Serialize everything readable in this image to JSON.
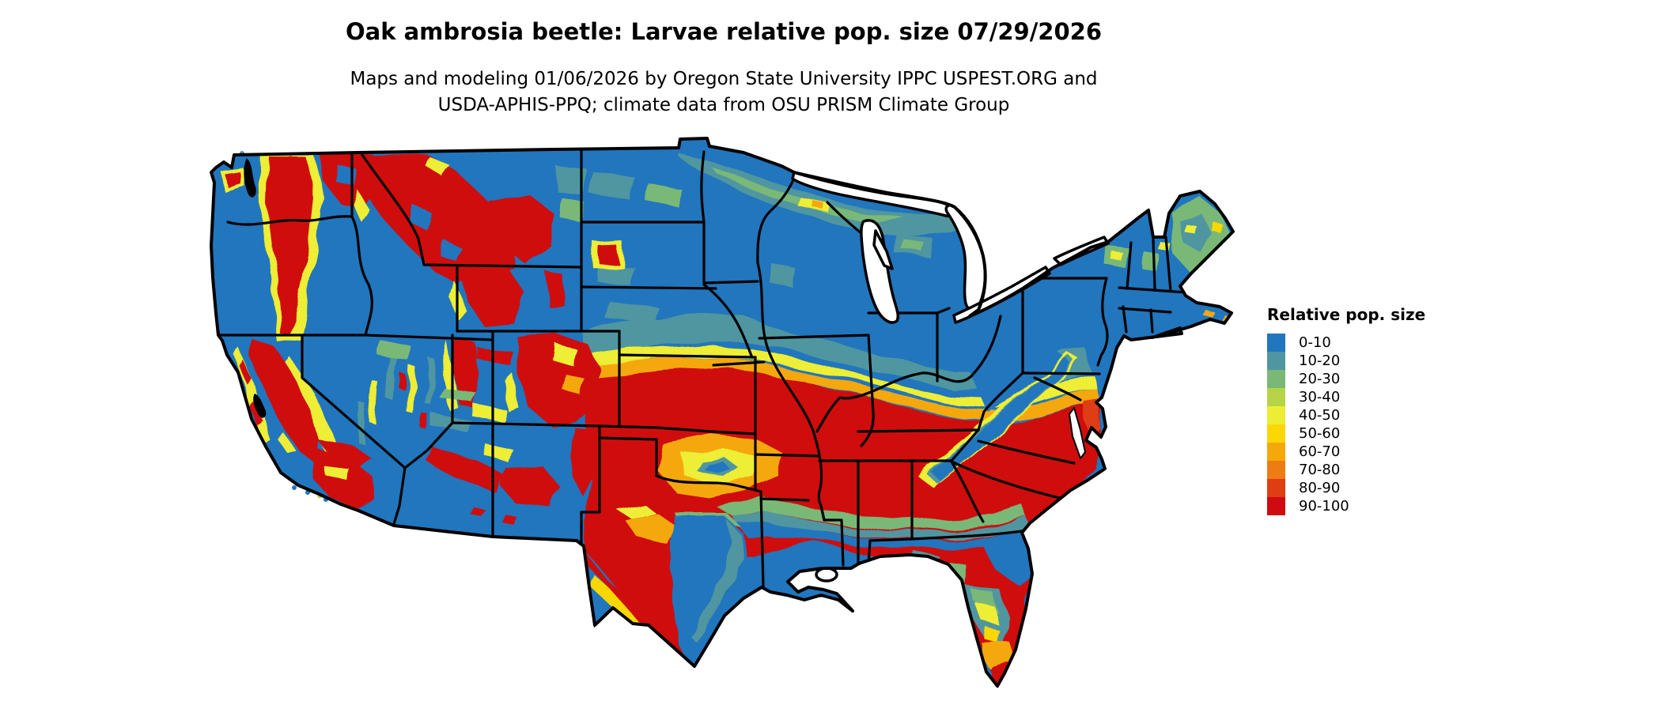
{
  "title": "Oak ambrosia beetle: Larvae relative pop. size 07/29/2026",
  "subtitle": {
    "line1": "Maps and modeling 01/06/2026 by Oregon State University IPPC USPEST.ORG and",
    "line2": "USDA-APHIS-PPQ; climate data from OSU PRISM Climate Group"
  },
  "legend": {
    "title": "Relative pop. size",
    "items": [
      {
        "label": "0-10",
        "color": "#2176bd"
      },
      {
        "label": "10-20",
        "color": "#4f96a1"
      },
      {
        "label": "20-30",
        "color": "#7ab877"
      },
      {
        "label": "30-40",
        "color": "#b7d348"
      },
      {
        "label": "40-50",
        "color": "#edee34"
      },
      {
        "label": "50-60",
        "color": "#fad705"
      },
      {
        "label": "60-70",
        "color": "#f5a80b"
      },
      {
        "label": "70-80",
        "color": "#ed7c12"
      },
      {
        "label": "80-90",
        "color": "#df3d14"
      },
      {
        "label": "90-100",
        "color": "#cf0a10"
      }
    ]
  },
  "map": {
    "colors": {
      "background": "#ffffff",
      "state_border": "#000000",
      "water": "#ffffff",
      "sound_fill": "#000000"
    }
  }
}
